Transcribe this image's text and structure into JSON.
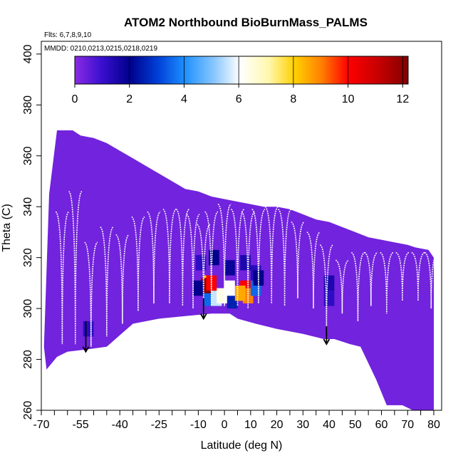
{
  "chart_data": {
    "type": "heatmap",
    "title": "ATOM2 Northbound BioBurnMass_PALMS",
    "flights_note": "Flts: 6,7,8,9,10",
    "dates_note": "MMDD: 0210,0213,0215,0218,0219",
    "xlabel": "Latitude (deg N)",
    "ylabel": "Theta (C)",
    "xlim": [
      -70,
      83
    ],
    "ylim": [
      260,
      405
    ],
    "x_ticks": [
      -70,
      -55,
      -40,
      -25,
      -10,
      0,
      10,
      20,
      30,
      40,
      50,
      60,
      70,
      80
    ],
    "y_ticks": [
      260,
      280,
      300,
      320,
      340,
      360,
      380,
      400
    ],
    "colorbar": {
      "ticks": [
        0,
        2,
        4,
        6,
        8,
        10,
        12
      ],
      "range": [
        0,
        12.2
      ],
      "colors": [
        "#8a2be2",
        "#00008b",
        "#1e90ff",
        "#ffffff",
        "#ffd700",
        "#ff0000",
        "#8b0000"
      ]
    },
    "background_value": 0.3,
    "coverage_upper": [
      [
        -67,
        345
      ],
      [
        -64,
        370
      ],
      [
        -58,
        370
      ],
      [
        -55,
        368
      ],
      [
        -50,
        367
      ],
      [
        -45,
        365
      ],
      [
        -40,
        362
      ],
      [
        -35,
        359
      ],
      [
        -30,
        356
      ],
      [
        -25,
        353
      ],
      [
        -20,
        350
      ],
      [
        -15,
        347
      ],
      [
        -10,
        346
      ],
      [
        -5,
        344
      ],
      [
        0,
        343
      ],
      [
        5,
        342
      ],
      [
        10,
        341
      ],
      [
        15,
        340
      ],
      [
        20,
        340
      ],
      [
        25,
        339
      ],
      [
        30,
        337
      ],
      [
        35,
        335
      ],
      [
        40,
        334
      ],
      [
        45,
        332
      ],
      [
        50,
        330
      ],
      [
        55,
        328
      ],
      [
        60,
        327
      ],
      [
        65,
        326
      ],
      [
        70,
        325
      ],
      [
        73,
        324
      ],
      [
        78,
        323
      ],
      [
        80,
        320
      ]
    ],
    "coverage_lower": [
      [
        80,
        260
      ],
      [
        72,
        260
      ],
      [
        68,
        262
      ],
      [
        62,
        262
      ],
      [
        58,
        272
      ],
      [
        52,
        285
      ],
      [
        48,
        286
      ],
      [
        42,
        288
      ],
      [
        38,
        288
      ],
      [
        30,
        290
      ],
      [
        20,
        292
      ],
      [
        12,
        294
      ],
      [
        5,
        296
      ],
      [
        2,
        298
      ],
      [
        -5,
        298
      ],
      [
        -15,
        297
      ],
      [
        -25,
        296
      ],
      [
        -35,
        294
      ],
      [
        -45,
        285
      ],
      [
        -52,
        284
      ],
      [
        -60,
        283
      ],
      [
        -64,
        281
      ],
      [
        -68,
        276
      ],
      [
        -69,
        285
      ]
    ],
    "enhancements": [
      {
        "lat": -9,
        "theta": 318,
        "value": 1.2
      },
      {
        "lat": -4,
        "theta": 320,
        "value": 2.0
      },
      {
        "lat": 2,
        "theta": 316,
        "value": 1.8
      },
      {
        "lat": 8,
        "theta": 318,
        "value": 1.5
      },
      {
        "lat": 12,
        "theta": 314,
        "value": 1.3
      },
      {
        "lat": -6,
        "theta": 304,
        "value": 3.5
      },
      {
        "lat": 3,
        "theta": 303,
        "value": 2.5
      },
      {
        "lat": -3,
        "theta": 304,
        "value": 5.5
      },
      {
        "lat": -1,
        "theta": 305,
        "value": 6.3
      },
      {
        "lat": 8,
        "theta": 308,
        "value": 10.0
      },
      {
        "lat": 9,
        "theta": 305,
        "value": 9.0
      },
      {
        "lat": 6,
        "theta": 306,
        "value": 8.5
      },
      {
        "lat": -6,
        "theta": 310,
        "value": 8.0
      },
      {
        "lat": -7,
        "theta": 309,
        "value": 12.0
      },
      {
        "lat": -5,
        "theta": 310,
        "value": 10.0
      },
      {
        "lat": 2,
        "theta": 308,
        "value": 6.0
      },
      {
        "lat": 12,
        "theta": 308,
        "value": 3.5
      },
      {
        "lat": 13,
        "theta": 312,
        "value": 2.0
      },
      {
        "lat": -10,
        "theta": 308,
        "value": 2.0
      },
      {
        "lat": 40,
        "theta": 310,
        "value": 1.5
      },
      {
        "lat": 40,
        "theta": 304,
        "value": 1.2
      },
      {
        "lat": -52,
        "theta": 292,
        "value": 1.2
      }
    ],
    "flight_profiles": [
      {
        "lat": -62,
        "top": 338,
        "bottom": 286
      },
      {
        "lat": -57,
        "top": 346,
        "bottom": 286
      },
      {
        "lat": -51,
        "top": 326,
        "bottom": 285
      },
      {
        "lat": -45,
        "top": 332,
        "bottom": 289
      },
      {
        "lat": -39,
        "top": 329,
        "bottom": 294
      },
      {
        "lat": -33,
        "top": 336,
        "bottom": 299
      },
      {
        "lat": -27,
        "top": 338,
        "bottom": 302
      },
      {
        "lat": -21,
        "top": 339,
        "bottom": 302
      },
      {
        "lat": -16,
        "top": 339,
        "bottom": 301
      },
      {
        "lat": -12,
        "top": 337,
        "bottom": 300
      },
      {
        "lat": -8,
        "top": 333,
        "bottom": 300
      },
      {
        "lat": -5,
        "top": 338,
        "bottom": 301
      },
      {
        "lat": 0,
        "top": 341,
        "bottom": 301
      },
      {
        "lat": 5,
        "top": 339,
        "bottom": 301
      },
      {
        "lat": 9,
        "top": 338,
        "bottom": 300
      },
      {
        "lat": 13,
        "top": 339,
        "bottom": 302
      },
      {
        "lat": 18,
        "top": 340,
        "bottom": 302
      },
      {
        "lat": 23,
        "top": 339,
        "bottom": 301
      },
      {
        "lat": 28,
        "top": 334,
        "bottom": 304
      },
      {
        "lat": 34,
        "top": 330,
        "bottom": 300
      },
      {
        "lat": 39,
        "top": 325,
        "bottom": 291
      },
      {
        "lat": 45,
        "top": 319,
        "bottom": 298
      },
      {
        "lat": 51,
        "top": 322,
        "bottom": 295
      },
      {
        "lat": 56,
        "top": 322,
        "bottom": 301
      },
      {
        "lat": 62,
        "top": 322,
        "bottom": 298
      },
      {
        "lat": 68,
        "top": 322,
        "bottom": 303
      },
      {
        "lat": 74,
        "top": 322,
        "bottom": 303
      },
      {
        "lat": 79,
        "top": 322,
        "bottom": 300
      }
    ],
    "arrows": [
      {
        "lat": -53,
        "theta_top": 295,
        "theta_bottom": 283
      },
      {
        "lat": -8,
        "theta_top": 304,
        "theta_bottom": 296
      },
      {
        "lat": 39,
        "theta_top": 293,
        "theta_bottom": 286
      }
    ]
  }
}
